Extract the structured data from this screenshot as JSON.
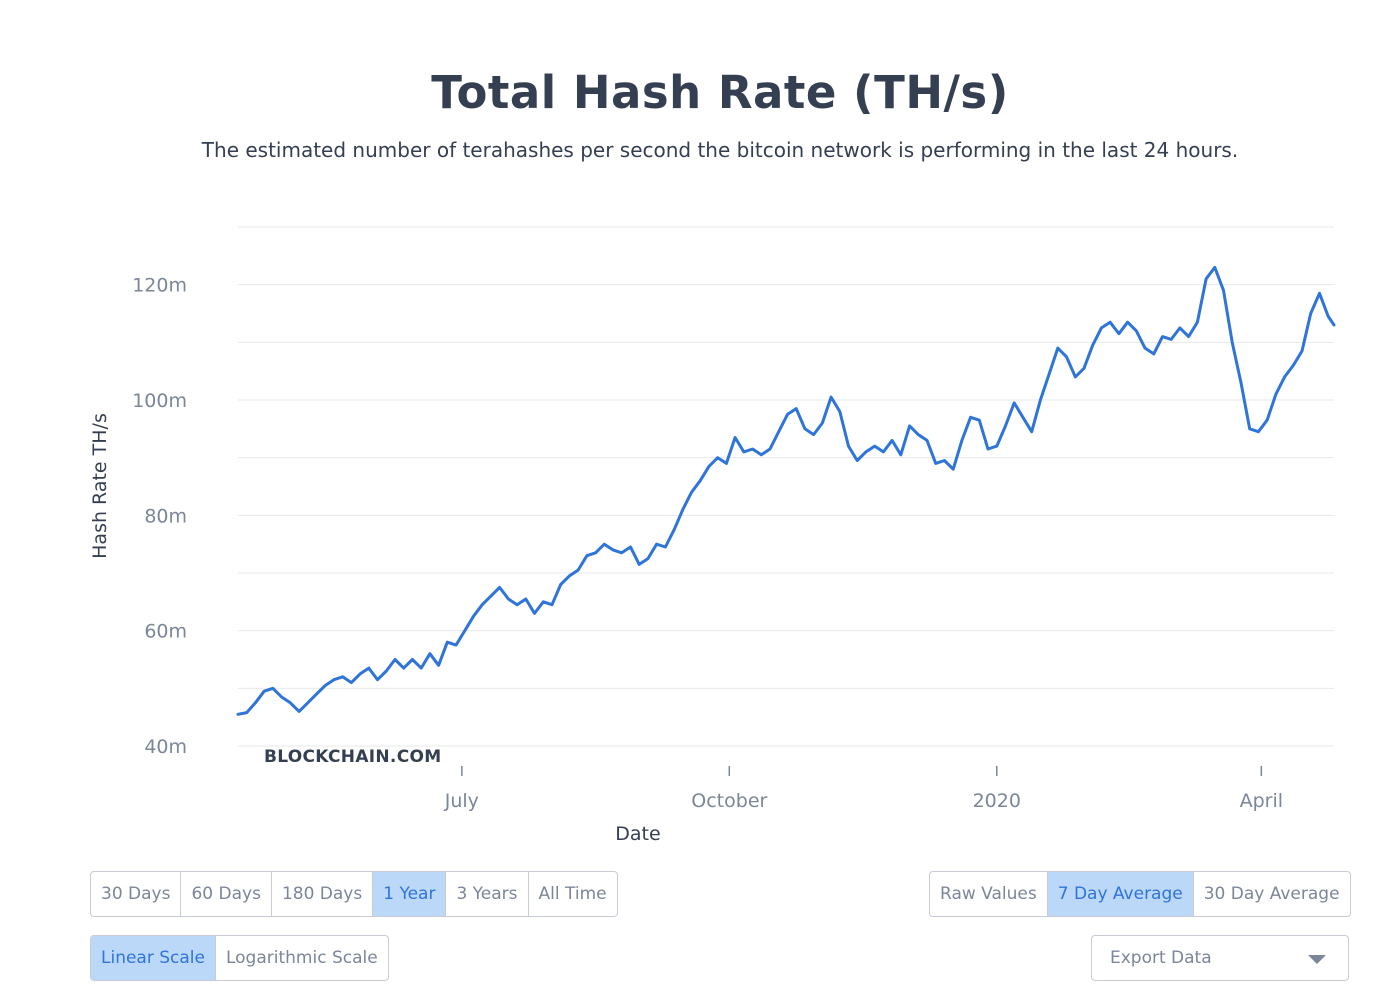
{
  "header": {
    "title": "Total Hash Rate (TH/s)",
    "subtitle": "The estimated number of terahashes per second the bitcoin network is performing in the last 24 hours."
  },
  "watermark": "BLOCKCHAIN.COM",
  "colors": {
    "line": "#2f74d9",
    "active_bg": "#bcd8f9",
    "active_text": "#2f74d9",
    "grid": "#e6e8ec"
  },
  "chart_data": {
    "type": "line",
    "title": "Total Hash Rate (TH/s)",
    "xlabel": "Date",
    "ylabel": "Hash Rate TH/s",
    "ylim": [
      40,
      130
    ],
    "xlim": [
      "2019-04-15",
      "2020-04-26"
    ],
    "yticks": [
      40,
      60,
      80,
      100,
      120
    ],
    "ytick_labels": [
      "40m",
      "60m",
      "80m",
      "100m",
      "120m"
    ],
    "xticks": [
      "2019-07-01",
      "2019-10-01",
      "2020-01-01",
      "2020-04-01"
    ],
    "xtick_labels": [
      "July",
      "October",
      "2020",
      "April"
    ],
    "grid": true,
    "series": [
      {
        "values": [
          [
            "2019-04-15",
            45.5
          ],
          [
            "2019-04-18",
            45.8
          ],
          [
            "2019-04-21",
            47.5
          ],
          [
            "2019-04-24",
            49.5
          ],
          [
            "2019-04-27",
            50.0
          ],
          [
            "2019-04-30",
            48.5
          ],
          [
            "2019-05-03",
            47.5
          ],
          [
            "2019-05-06",
            46.0
          ],
          [
            "2019-05-09",
            47.5
          ],
          [
            "2019-05-12",
            49.0
          ],
          [
            "2019-05-15",
            50.5
          ],
          [
            "2019-05-18",
            51.5
          ],
          [
            "2019-05-21",
            52.0
          ],
          [
            "2019-05-24",
            51.0
          ],
          [
            "2019-05-27",
            52.5
          ],
          [
            "2019-05-30",
            53.5
          ],
          [
            "2019-06-02",
            51.5
          ],
          [
            "2019-06-05",
            53.0
          ],
          [
            "2019-06-08",
            55.0
          ],
          [
            "2019-06-11",
            53.5
          ],
          [
            "2019-06-14",
            55.0
          ],
          [
            "2019-06-17",
            53.5
          ],
          [
            "2019-06-20",
            56.0
          ],
          [
            "2019-06-23",
            54.0
          ],
          [
            "2019-06-26",
            58.0
          ],
          [
            "2019-06-29",
            57.5
          ],
          [
            "2019-07-02",
            60.0
          ],
          [
            "2019-07-05",
            62.5
          ],
          [
            "2019-07-08",
            64.5
          ],
          [
            "2019-07-11",
            66.0
          ],
          [
            "2019-07-14",
            67.5
          ],
          [
            "2019-07-17",
            65.5
          ],
          [
            "2019-07-20",
            64.5
          ],
          [
            "2019-07-23",
            65.5
          ],
          [
            "2019-07-26",
            63.0
          ],
          [
            "2019-07-29",
            65.0
          ],
          [
            "2019-08-01",
            64.5
          ],
          [
            "2019-08-04",
            68.0
          ],
          [
            "2019-08-07",
            69.5
          ],
          [
            "2019-08-10",
            70.5
          ],
          [
            "2019-08-13",
            73.0
          ],
          [
            "2019-08-16",
            73.5
          ],
          [
            "2019-08-19",
            75.0
          ],
          [
            "2019-08-22",
            74.0
          ],
          [
            "2019-08-25",
            73.5
          ],
          [
            "2019-08-28",
            74.5
          ],
          [
            "2019-08-31",
            71.5
          ],
          [
            "2019-09-03",
            72.5
          ],
          [
            "2019-09-06",
            75.0
          ],
          [
            "2019-09-09",
            74.5
          ],
          [
            "2019-09-12",
            77.5
          ],
          [
            "2019-09-15",
            81.0
          ],
          [
            "2019-09-18",
            84.0
          ],
          [
            "2019-09-21",
            86.0
          ],
          [
            "2019-09-24",
            88.5
          ],
          [
            "2019-09-27",
            90.0
          ],
          [
            "2019-09-30",
            89.0
          ],
          [
            "2019-10-03",
            93.5
          ],
          [
            "2019-10-06",
            91.0
          ],
          [
            "2019-10-09",
            91.5
          ],
          [
            "2019-10-12",
            90.5
          ],
          [
            "2019-10-15",
            91.5
          ],
          [
            "2019-10-18",
            94.5
          ],
          [
            "2019-10-21",
            97.5
          ],
          [
            "2019-10-24",
            98.5
          ],
          [
            "2019-10-27",
            95.0
          ],
          [
            "2019-10-30",
            94.0
          ],
          [
            "2019-11-02",
            96.0
          ],
          [
            "2019-11-05",
            100.5
          ],
          [
            "2019-11-08",
            98.0
          ],
          [
            "2019-11-11",
            92.0
          ],
          [
            "2019-11-14",
            89.5
          ],
          [
            "2019-11-17",
            91.0
          ],
          [
            "2019-11-20",
            92.0
          ],
          [
            "2019-11-23",
            91.0
          ],
          [
            "2019-11-26",
            93.0
          ],
          [
            "2019-11-29",
            90.5
          ],
          [
            "2019-12-02",
            95.5
          ],
          [
            "2019-12-05",
            94.0
          ],
          [
            "2019-12-08",
            93.0
          ],
          [
            "2019-12-11",
            89.0
          ],
          [
            "2019-12-14",
            89.5
          ],
          [
            "2019-12-17",
            88.0
          ],
          [
            "2019-12-20",
            93.0
          ],
          [
            "2019-12-23",
            97.0
          ],
          [
            "2019-12-26",
            96.5
          ],
          [
            "2019-12-29",
            91.5
          ],
          [
            "2020-01-01",
            92.0
          ],
          [
            "2020-01-04",
            95.5
          ],
          [
            "2020-01-07",
            99.5
          ],
          [
            "2020-01-10",
            97.0
          ],
          [
            "2020-01-13",
            94.5
          ],
          [
            "2020-01-16",
            100.0
          ],
          [
            "2020-01-19",
            104.5
          ],
          [
            "2020-01-22",
            109.0
          ],
          [
            "2020-01-25",
            107.5
          ],
          [
            "2020-01-28",
            104.0
          ],
          [
            "2020-01-31",
            105.5
          ],
          [
            "2020-02-03",
            109.5
          ],
          [
            "2020-02-06",
            112.5
          ],
          [
            "2020-02-09",
            113.5
          ],
          [
            "2020-02-12",
            111.5
          ],
          [
            "2020-02-15",
            113.5
          ],
          [
            "2020-02-18",
            112.0
          ],
          [
            "2020-02-21",
            109.0
          ],
          [
            "2020-02-24",
            108.0
          ],
          [
            "2020-02-27",
            111.0
          ],
          [
            "2020-03-01",
            110.5
          ],
          [
            "2020-03-04",
            112.5
          ],
          [
            "2020-03-07",
            111.0
          ],
          [
            "2020-03-10",
            113.5
          ],
          [
            "2020-03-13",
            121.0
          ],
          [
            "2020-03-16",
            123.0
          ],
          [
            "2020-03-19",
            119.0
          ],
          [
            "2020-03-22",
            110.0
          ],
          [
            "2020-03-25",
            103.0
          ],
          [
            "2020-03-28",
            95.0
          ],
          [
            "2020-03-31",
            94.5
          ],
          [
            "2020-04-03",
            96.5
          ],
          [
            "2020-04-06",
            101.0
          ],
          [
            "2020-04-09",
            104.0
          ],
          [
            "2020-04-12",
            106.0
          ],
          [
            "2020-04-15",
            108.5
          ],
          [
            "2020-04-18",
            115.0
          ],
          [
            "2020-04-21",
            118.5
          ],
          [
            "2020-04-24",
            114.5
          ],
          [
            "2020-04-26",
            113.0
          ]
        ]
      }
    ]
  },
  "controls": {
    "range_buttons": [
      {
        "label": "30 Days",
        "active": false
      },
      {
        "label": "60 Days",
        "active": false
      },
      {
        "label": "180 Days",
        "active": false
      },
      {
        "label": "1 Year",
        "active": true
      },
      {
        "label": "3 Years",
        "active": false
      },
      {
        "label": "All Time",
        "active": false
      }
    ],
    "average_buttons": [
      {
        "label": "Raw Values",
        "active": false
      },
      {
        "label": "7 Day Average",
        "active": true
      },
      {
        "label": "30 Day Average",
        "active": false
      }
    ],
    "scale_buttons": [
      {
        "label": "Linear Scale",
        "active": true
      },
      {
        "label": "Logarithmic Scale",
        "active": false
      }
    ],
    "export": {
      "label": "Export Data"
    }
  }
}
